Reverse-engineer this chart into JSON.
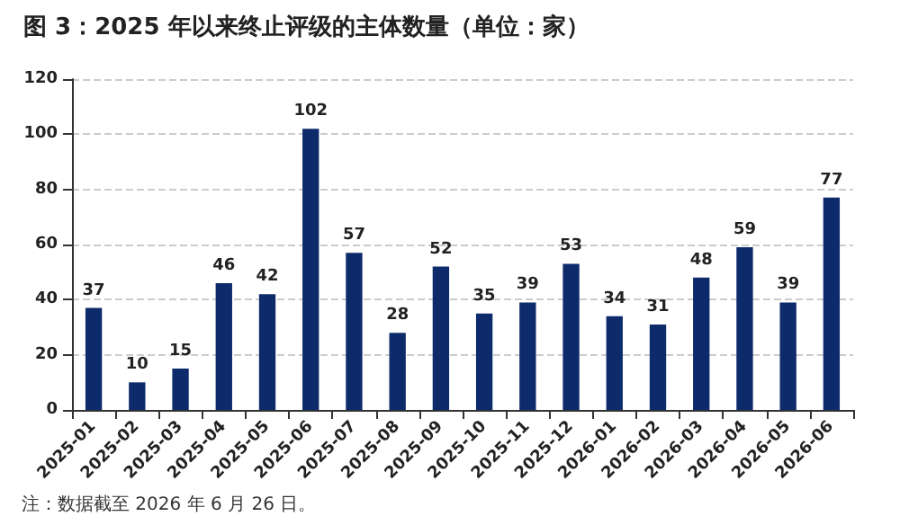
{
  "chart_data": {
    "type": "bar",
    "title": "图 3：2025 年以来终止评级的主体数量（单位：家）",
    "categories": [
      "2025-01",
      "2025-02",
      "2025-03",
      "2025-04",
      "2025-05",
      "2025-06",
      "2025-07",
      "2025-08",
      "2025-09",
      "2025-10",
      "2025-11",
      "2025-12",
      "2026-01",
      "2026-02",
      "2026-03",
      "2026-04",
      "2026-05",
      "2026-06"
    ],
    "values": [
      37,
      10,
      15,
      46,
      42,
      102,
      57,
      28,
      52,
      35,
      39,
      53,
      34,
      31,
      48,
      59,
      39,
      77
    ],
    "color": "#0d2a6b",
    "ylim": [
      0,
      120
    ],
    "yticks": [
      0,
      20,
      40,
      60,
      80,
      100,
      120
    ],
    "grid": "y",
    "data_labels": true,
    "annotations": [
      "注：数据截至 2026 年 6 月 26 日。"
    ]
  }
}
